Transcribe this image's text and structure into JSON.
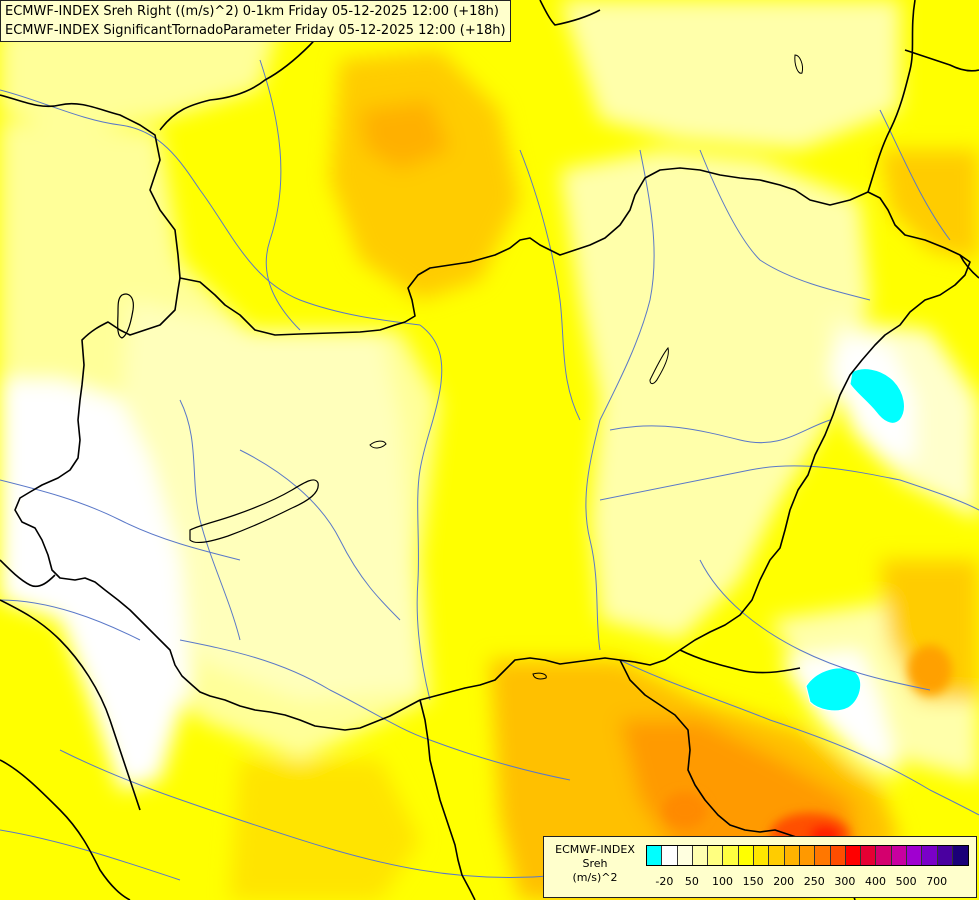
{
  "header": {
    "line1": "ECMWF-INDEX Sreh Right ((m/s)^2) 0-1km Friday 05-12-2025 12:00 (+18h)",
    "line2": "ECMWF-INDEX SignificantTornadoParameter Friday 05-12-2025 12:00 (+18h)"
  },
  "legend": {
    "title_line1": "ECMWF-INDEX",
    "title_line2": "Sreh",
    "title_line3": "(m/s)^2",
    "colors": [
      "#00ffff",
      "#ffffff",
      "#ffffe0",
      "#ffffb0",
      "#ffff80",
      "#ffff40",
      "#ffff00",
      "#ffe600",
      "#ffcc00",
      "#ffb300",
      "#ff9900",
      "#ff7700",
      "#ff4d00",
      "#ff0000",
      "#e60033",
      "#d4006e",
      "#c800a0",
      "#a000d0",
      "#7a00c8",
      "#4a00a0",
      "#1a0078"
    ],
    "ticks": [
      "-20",
      "50",
      "100",
      "150",
      "200",
      "250",
      "300",
      "400",
      "500",
      "700"
    ]
  },
  "map_colors": {
    "background": "#ffff00",
    "very_light": "#ffffe0",
    "light": "#ffffaa",
    "pale": "#ffff88",
    "orange_light": "#ffd000",
    "orange": "#ffb300",
    "orange_dark": "#ff9000",
    "red": "#ff4000",
    "cyan": "#00ffff",
    "white": "#ffffff",
    "border": "#000000",
    "river": "#5a78c8"
  }
}
